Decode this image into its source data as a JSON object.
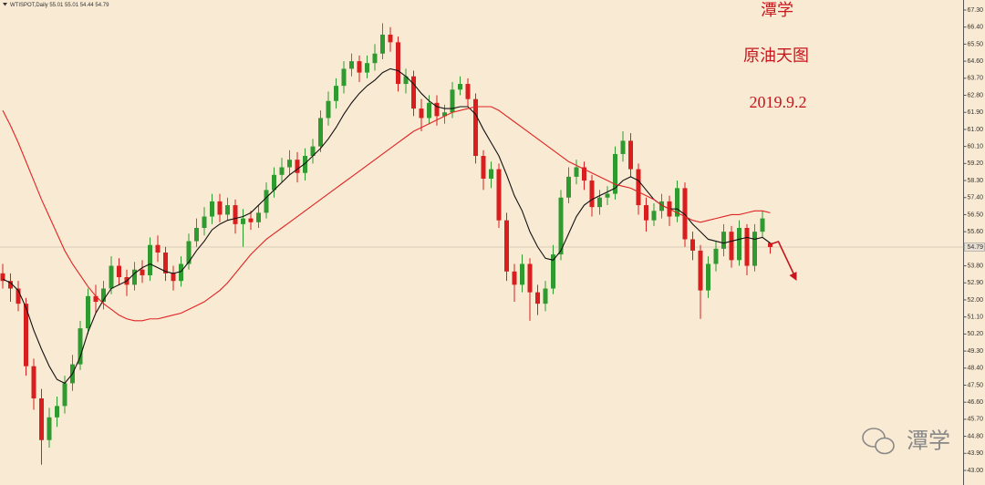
{
  "chart_data": {
    "type": "candlestick",
    "symbol": "WTISPOT,Daily",
    "annotations": [
      "潭学",
      "原油天图",
      "2019.9.2"
    ],
    "watermark": "潭学",
    "up_color": "#2f9a30",
    "down_color": "#d81e1e",
    "ylim": [
      42.23,
      67.83
    ],
    "yticks": [
      {
        "value": 67.3,
        "label": "67.30"
      },
      {
        "value": 66.4,
        "label": "66.40"
      },
      {
        "value": 65.5,
        "label": "65.50"
      },
      {
        "value": 64.6,
        "label": "64.60"
      },
      {
        "value": 63.7,
        "label": "63.70"
      },
      {
        "value": 62.8,
        "label": "62.80"
      },
      {
        "value": 61.9,
        "label": "61.90"
      },
      {
        "value": 61.0,
        "label": "61.00"
      },
      {
        "value": 60.1,
        "label": "60.10"
      },
      {
        "value": 59.2,
        "label": "59.20"
      },
      {
        "value": 58.3,
        "label": "58.30"
      },
      {
        "value": 57.4,
        "label": "57.40"
      },
      {
        "value": 56.5,
        "label": "56.50"
      },
      {
        "value": 55.6,
        "label": "55.60"
      },
      {
        "value": 53.8,
        "label": "53.80"
      },
      {
        "value": 52.9,
        "label": "52.90"
      },
      {
        "value": 52.0,
        "label": "52.00"
      },
      {
        "value": 51.1,
        "label": "51.10"
      },
      {
        "value": 50.2,
        "label": "50.20"
      },
      {
        "value": 49.3,
        "label": "49.30"
      },
      {
        "value": 48.4,
        "label": "48.40"
      },
      {
        "value": 47.5,
        "label": "47.50"
      },
      {
        "value": 46.6,
        "label": "46.60"
      },
      {
        "value": 45.7,
        "label": "45.70"
      },
      {
        "value": 44.8,
        "label": "44.80"
      },
      {
        "value": 43.9,
        "label": "43.90"
      },
      {
        "value": 43.0,
        "label": "43.00"
      }
    ],
    "open": [
      53.4,
      53.0,
      52.6,
      51.8,
      48.5,
      46.8,
      44.6,
      45.8,
      46.4,
      47.6,
      48.6,
      50.5,
      52.2,
      51.9,
      52.6,
      53.8,
      53.2,
      52.8,
      53.6,
      53.3,
      54.9,
      54.5,
      53.4,
      53.0,
      53.9,
      55.1,
      55.8,
      56.4,
      57.2,
      56.5,
      57.0,
      56.0,
      56.3,
      56.1,
      56.6,
      57.8,
      58.6,
      59.0,
      59.4,
      58.7,
      59.6,
      60.1,
      61.6,
      62.5,
      63.3,
      64.2,
      64.6,
      64.0,
      64.5,
      65.0,
      66.0,
      65.6,
      63.4,
      63.8,
      62.1,
      61.6,
      62.4,
      61.7,
      61.9,
      63.1,
      63.4,
      62.6,
      59.6,
      58.4,
      58.9,
      56.2,
      53.5,
      52.8,
      53.9,
      52.4,
      51.8,
      52.6,
      54.4,
      57.4,
      58.5,
      59.0,
      58.3,
      56.9,
      57.4,
      57.6,
      59.7,
      60.4,
      58.9,
      57.0,
      56.2,
      56.7,
      57.2,
      56.4,
      57.9,
      55.2,
      54.6,
      52.5,
      53.9,
      54.7,
      55.6,
      54.1,
      55.8,
      53.8,
      55.6,
      55.01
    ],
    "high": [
      53.9,
      53.4,
      53.0,
      52.1,
      48.9,
      47.3,
      46.3,
      46.9,
      48.0,
      49.1,
      50.9,
      52.6,
      52.8,
      53.0,
      54.3,
      54.2,
      53.6,
      54.0,
      54.1,
      55.3,
      55.4,
      54.8,
      53.8,
      54.3,
      55.5,
      56.3,
      56.9,
      57.6,
      57.6,
      57.4,
      57.3,
      56.8,
      56.7,
      57.0,
      58.2,
      59.0,
      59.5,
      59.9,
      59.8,
      60.0,
      60.5,
      62.0,
      63.0,
      63.7,
      64.6,
      65.0,
      64.9,
      64.9,
      65.5,
      66.6,
      66.4,
      65.9,
      64.2,
      64.1,
      62.6,
      62.8,
      62.8,
      62.3,
      63.5,
      63.8,
      63.7,
      62.9,
      59.9,
      59.3,
      59.2,
      56.6,
      53.9,
      54.4,
      54.2,
      52.8,
      53.0,
      54.9,
      57.8,
      59.0,
      59.4,
      59.3,
      58.6,
      57.8,
      58.0,
      60.1,
      60.9,
      60.8,
      59.2,
      57.4,
      57.1,
      57.6,
      57.5,
      58.3,
      58.2,
      55.6,
      54.9,
      54.3,
      55.1,
      56.0,
      55.9,
      56.2,
      56.0,
      56.0,
      56.7,
      55.01
    ],
    "low": [
      52.6,
      51.9,
      51.4,
      48.0,
      46.2,
      43.3,
      44.2,
      45.3,
      46.0,
      47.2,
      48.3,
      50.2,
      51.3,
      51.5,
      52.3,
      52.8,
      52.2,
      52.5,
      52.9,
      53.0,
      54.0,
      53.0,
      52.5,
      52.7,
      53.6,
      54.8,
      55.4,
      56.0,
      56.1,
      56.2,
      55.5,
      54.8,
      55.7,
      55.8,
      56.3,
      57.4,
      58.2,
      58.6,
      58.2,
      58.3,
      59.2,
      59.8,
      61.2,
      62.1,
      62.9,
      63.8,
      63.5,
      63.7,
      64.1,
      64.7,
      65.1,
      63.0,
      62.9,
      61.7,
      60.9,
      61.3,
      61.2,
      61.3,
      61.6,
      62.8,
      62.2,
      59.2,
      57.8,
      57.9,
      55.8,
      53.0,
      51.9,
      52.4,
      50.9,
      51.2,
      51.4,
      52.3,
      54.1,
      57.1,
      58.1,
      57.8,
      56.4,
      56.5,
      57.0,
      57.3,
      59.3,
      58.5,
      56.5,
      55.6,
      55.9,
      56.3,
      55.9,
      56.1,
      54.8,
      54.1,
      51.0,
      52.1,
      53.5,
      54.3,
      53.7,
      53.8,
      53.3,
      53.5,
      55.3,
      54.44
    ],
    "close": [
      53.0,
      52.6,
      51.8,
      48.5,
      46.8,
      44.6,
      45.8,
      46.4,
      47.6,
      48.6,
      50.5,
      52.2,
      51.9,
      52.6,
      53.8,
      53.2,
      52.8,
      53.6,
      53.3,
      54.9,
      54.5,
      53.4,
      53.0,
      53.9,
      55.1,
      55.8,
      56.4,
      57.2,
      56.5,
      57.0,
      56.0,
      56.3,
      56.1,
      56.6,
      57.8,
      58.6,
      59.0,
      59.4,
      58.7,
      59.6,
      60.1,
      61.6,
      62.5,
      63.3,
      64.2,
      64.6,
      64.0,
      64.5,
      65.0,
      66.0,
      65.6,
      63.4,
      63.8,
      62.1,
      61.6,
      62.4,
      61.7,
      61.9,
      63.1,
      63.4,
      62.6,
      59.6,
      58.4,
      58.9,
      56.2,
      53.5,
      52.8,
      53.9,
      52.4,
      51.8,
      52.6,
      54.4,
      57.4,
      58.5,
      59.0,
      58.3,
      56.9,
      57.4,
      57.6,
      59.7,
      60.4,
      58.9,
      57.0,
      56.2,
      56.7,
      57.2,
      56.4,
      57.9,
      55.2,
      54.6,
      52.5,
      53.9,
      54.7,
      55.6,
      54.1,
      55.8,
      53.8,
      55.6,
      56.3,
      54.79
    ],
    "moving_averages": [
      {
        "color": "#111111",
        "values": [
          53.1,
          52.9,
          52.5,
          51.6,
          50.4,
          49.4,
          48.5,
          47.8,
          47.6,
          48.1,
          49.0,
          50.3,
          51.3,
          52.0,
          52.6,
          52.8,
          53.0,
          53.4,
          53.7,
          53.9,
          53.7,
          53.5,
          53.4,
          53.5,
          54.0,
          54.6,
          55.1,
          55.7,
          56.0,
          56.2,
          56.3,
          56.4,
          56.6,
          57.0,
          57.4,
          57.8,
          58.2,
          58.6,
          58.9,
          59.2,
          59.6,
          60.0,
          60.5,
          61.1,
          61.8,
          62.4,
          62.9,
          63.3,
          63.6,
          64.0,
          64.2,
          64.1,
          63.8,
          63.4,
          62.9,
          62.5,
          62.2,
          62.1,
          62.1,
          62.2,
          62.2,
          61.8,
          61.0,
          60.3,
          59.6,
          58.6,
          57.5,
          56.7,
          55.6,
          54.8,
          54.2,
          54.1,
          54.6,
          55.5,
          56.4,
          57.0,
          57.3,
          57.5,
          57.7,
          57.9,
          58.3,
          58.5,
          58.3,
          57.8,
          57.3,
          57.0,
          56.8,
          56.8,
          56.5,
          56.0,
          55.6,
          55.2,
          55.1,
          55.0,
          55.1,
          55.2,
          55.3,
          55.2,
          55.3,
          55.0
        ]
      },
      {
        "color": "#e02424",
        "values": [
          62.0,
          61.2,
          60.3,
          59.3,
          58.3,
          57.3,
          56.4,
          55.5,
          54.6,
          53.9,
          53.3,
          52.7,
          52.2,
          51.8,
          51.5,
          51.2,
          51.0,
          50.9,
          50.9,
          51.0,
          51.0,
          51.1,
          51.2,
          51.3,
          51.5,
          51.7,
          51.9,
          52.2,
          52.5,
          52.9,
          53.4,
          53.9,
          54.4,
          54.8,
          55.2,
          55.5,
          55.8,
          56.1,
          56.4,
          56.7,
          57.0,
          57.3,
          57.6,
          57.9,
          58.2,
          58.5,
          58.8,
          59.1,
          59.4,
          59.7,
          60.0,
          60.3,
          60.6,
          60.9,
          61.1,
          61.3,
          61.5,
          61.7,
          61.9,
          62.0,
          62.1,
          62.2,
          62.2,
          62.2,
          62.0,
          61.7,
          61.4,
          61.1,
          60.8,
          60.5,
          60.2,
          59.9,
          59.6,
          59.3,
          59.1,
          58.9,
          58.7,
          58.5,
          58.3,
          58.1,
          58.0,
          57.9,
          57.7,
          57.5,
          57.3,
          57.0,
          56.8,
          56.6,
          56.4,
          56.2,
          56.1,
          56.2,
          56.3,
          56.4,
          56.5,
          56.5,
          56.6,
          56.7,
          56.7,
          56.6
        ]
      }
    ]
  }
}
